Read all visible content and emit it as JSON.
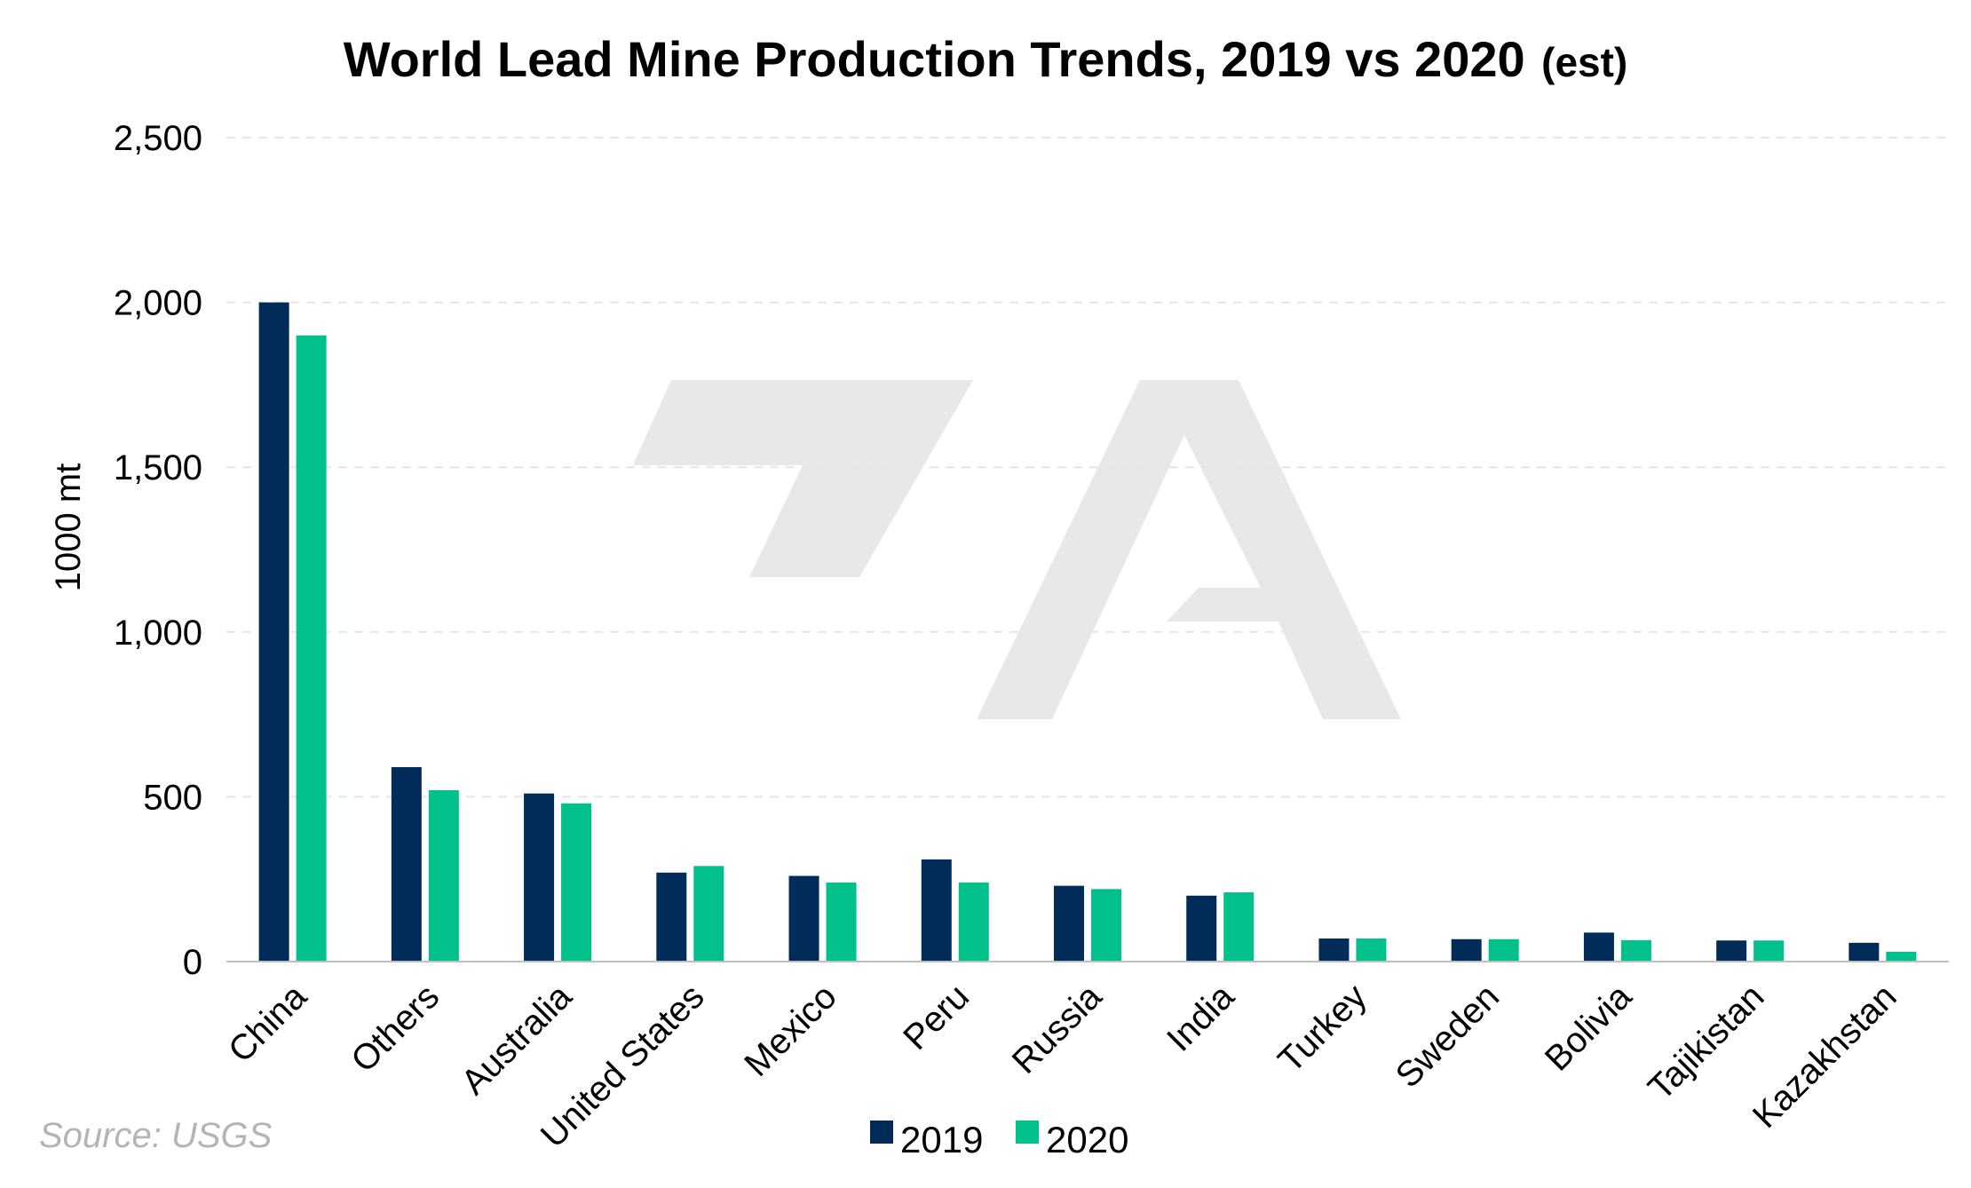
{
  "colors": {
    "series_2019": "#012c5a",
    "series_2020": "#00c08b",
    "gridline": "#e6e6e6",
    "axis": "#bfbfbf",
    "watermark": "#e8e8e8",
    "source": "#b4b4b4"
  },
  "watermark": "logo-watermark",
  "source": "Source: USGS",
  "chart_data": {
    "type": "bar",
    "title": "World Lead Mine Production Trends, 2019 vs 2020",
    "title_suffix": "(est)",
    "xlabel": "",
    "ylabel": "1000 mt",
    "ylim": [
      0,
      2500
    ],
    "yticks": [
      0,
      500,
      1000,
      1500,
      2000,
      2500
    ],
    "ytick_labels": [
      "0",
      "500",
      "1,000",
      "1,500",
      "2,000",
      "2,500"
    ],
    "grid": true,
    "legend_position": "bottom-center",
    "categories": [
      "China",
      "Others",
      "Australia",
      "United States",
      "Mexico",
      "Peru",
      "Russia",
      "India",
      "Turkey",
      "Sweden",
      "Bolivia",
      "Tajikistan",
      "Kazakhstan"
    ],
    "series": [
      {
        "name": "2019",
        "values": [
          2000,
          590,
          510,
          270,
          260,
          310,
          230,
          200,
          70,
          68,
          88,
          64,
          57
        ]
      },
      {
        "name": "2020",
        "values": [
          1900,
          520,
          480,
          290,
          240,
          240,
          220,
          210,
          70,
          68,
          65,
          64,
          30
        ]
      }
    ]
  }
}
